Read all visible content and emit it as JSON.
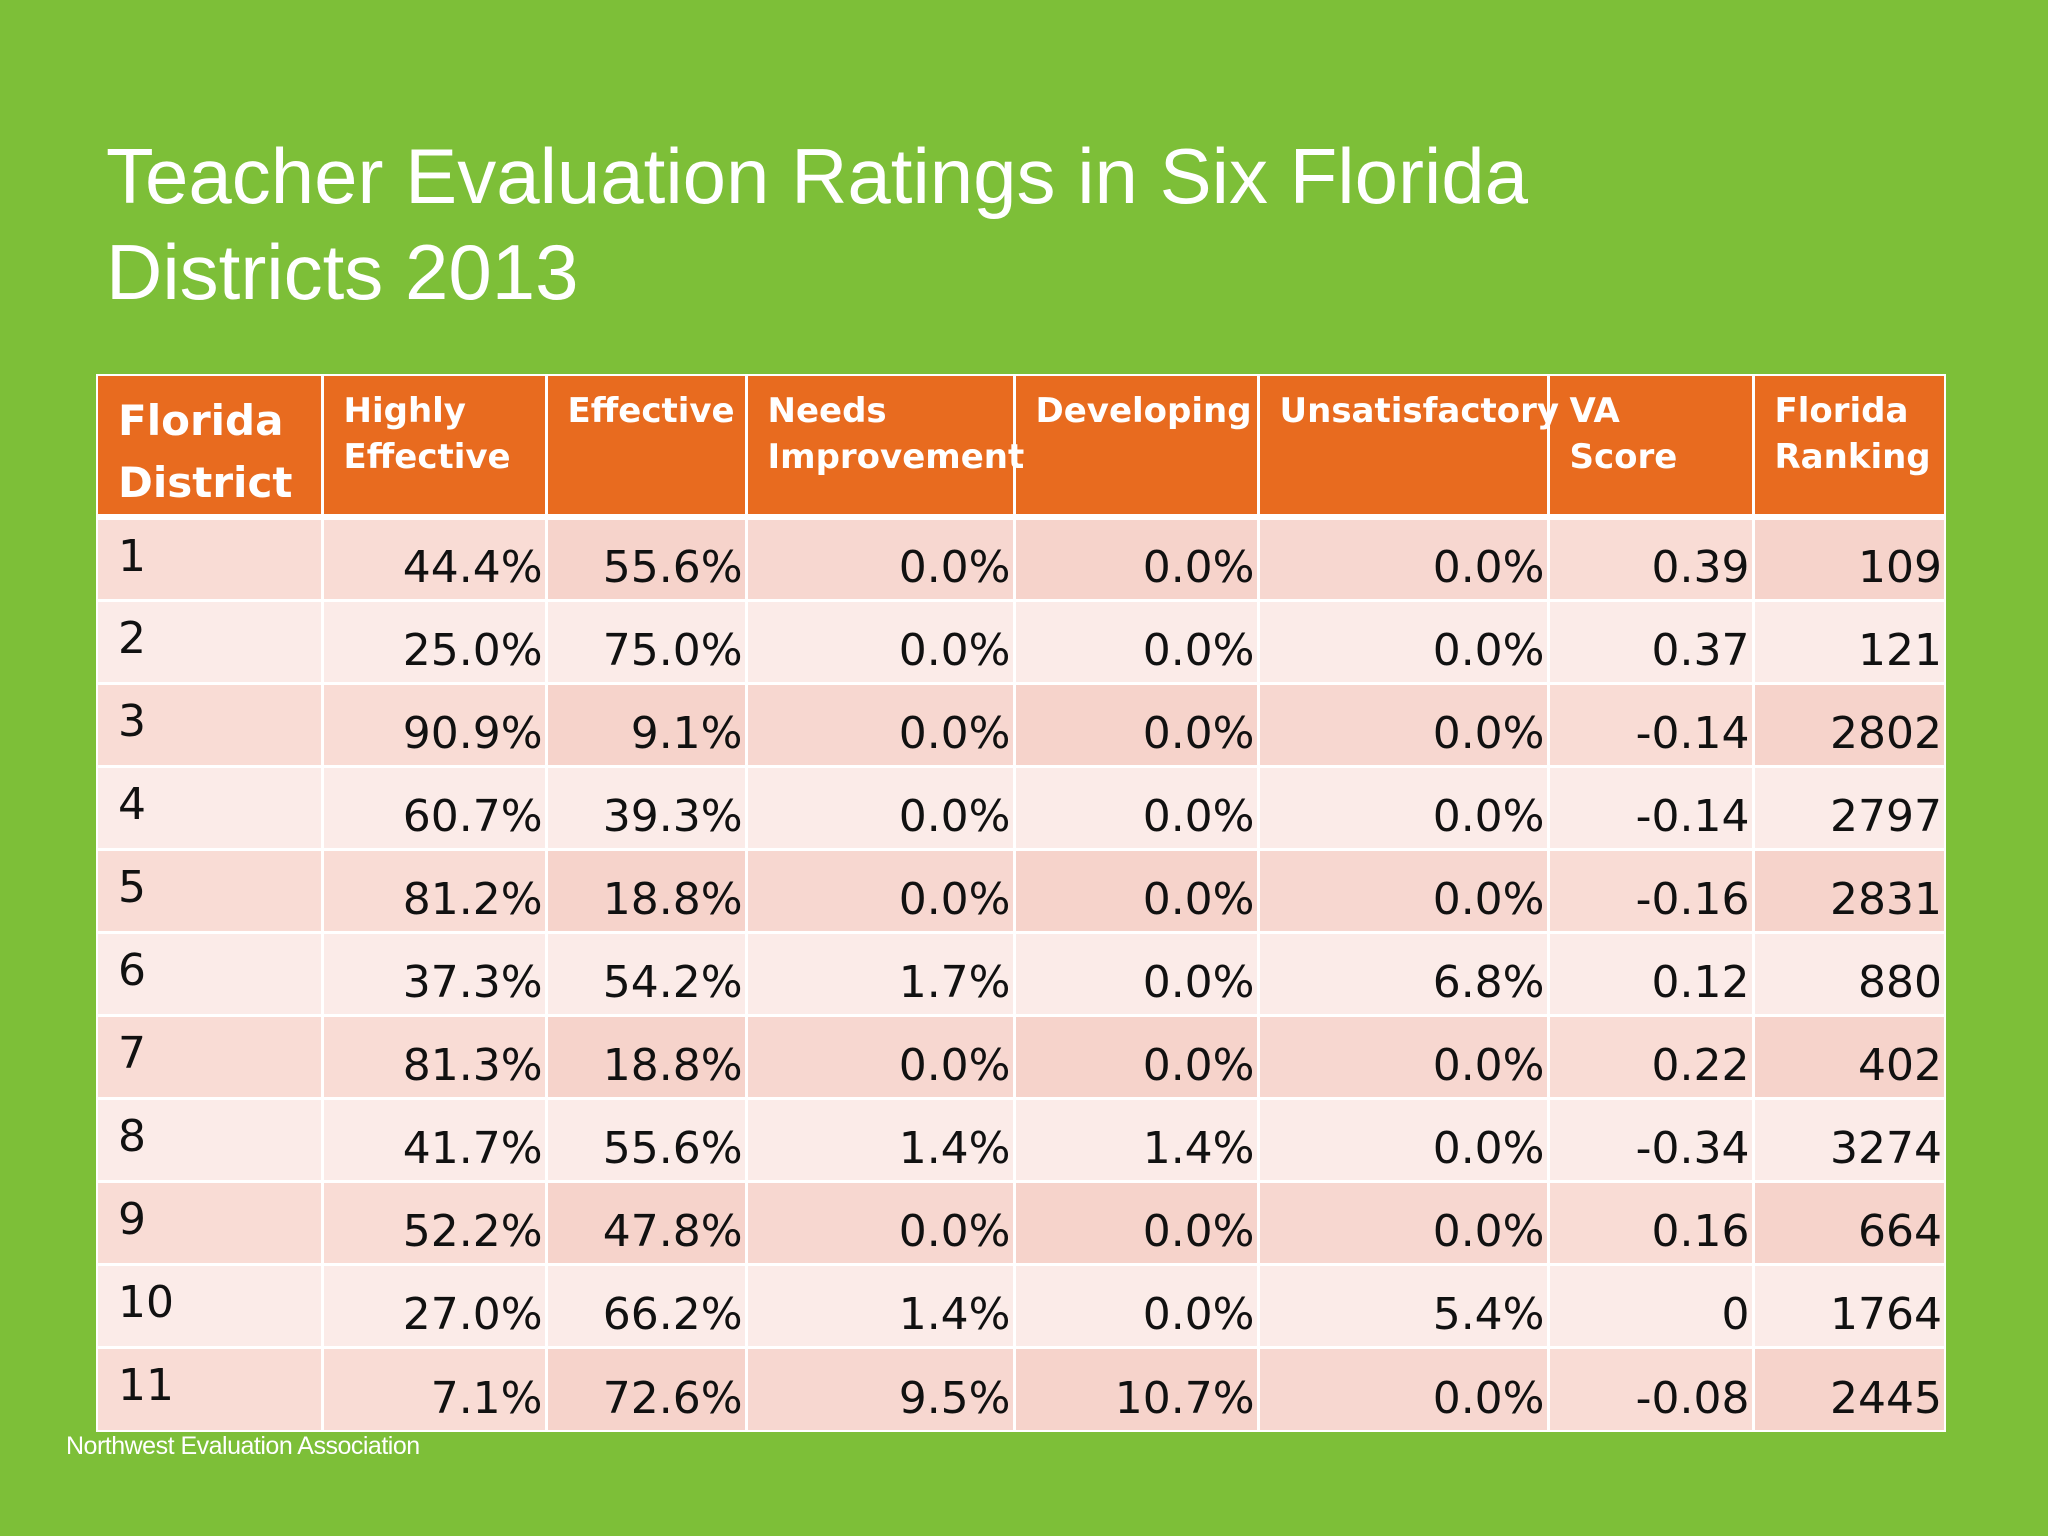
{
  "title": "Teacher Evaluation Ratings in Six Florida Districts 2013",
  "footer": "Northwest Evaluation Association",
  "colors": {
    "background": "#7dbf38",
    "header": "#e86b1f",
    "row_odd": "#f7d7d0",
    "row_even": "#fbebe8"
  },
  "chart_data": {
    "type": "table",
    "title": "Teacher Evaluation Ratings in Six Florida Districts 2013",
    "columns": [
      "Florida District",
      "Highly Effective",
      "Effective",
      "Needs Improvement",
      "Developing",
      "Unsatisfactory",
      "VA Score",
      "Florida Ranking"
    ],
    "rows": [
      [
        "1",
        "44.4%",
        "55.6%",
        "0.0%",
        "0.0%",
        "0.0%",
        "0.39",
        "109"
      ],
      [
        "2",
        "25.0%",
        "75.0%",
        "0.0%",
        "0.0%",
        "0.0%",
        "0.37",
        "121"
      ],
      [
        "3",
        "90.9%",
        "9.1%",
        "0.0%",
        "0.0%",
        "0.0%",
        "-0.14",
        "2802"
      ],
      [
        "4",
        "60.7%",
        "39.3%",
        "0.0%",
        "0.0%",
        "0.0%",
        "-0.14",
        "2797"
      ],
      [
        "5",
        "81.2%",
        "18.8%",
        "0.0%",
        "0.0%",
        "0.0%",
        "-0.16",
        "2831"
      ],
      [
        "6",
        "37.3%",
        "54.2%",
        "1.7%",
        "0.0%",
        "6.8%",
        "0.12",
        "880"
      ],
      [
        "7",
        "81.3%",
        "18.8%",
        "0.0%",
        "0.0%",
        "0.0%",
        "0.22",
        "402"
      ],
      [
        "8",
        "41.7%",
        "55.6%",
        "1.4%",
        "1.4%",
        "0.0%",
        "-0.34",
        "3274"
      ],
      [
        "9",
        "52.2%",
        "47.8%",
        "0.0%",
        "0.0%",
        "0.0%",
        "0.16",
        "664"
      ],
      [
        "10",
        "27.0%",
        "66.2%",
        "1.4%",
        "0.0%",
        "5.4%",
        "0",
        "1764"
      ],
      [
        "11",
        "7.1%",
        "72.6%",
        "9.5%",
        "10.7%",
        "0.0%",
        "-0.08",
        "2445"
      ]
    ]
  }
}
